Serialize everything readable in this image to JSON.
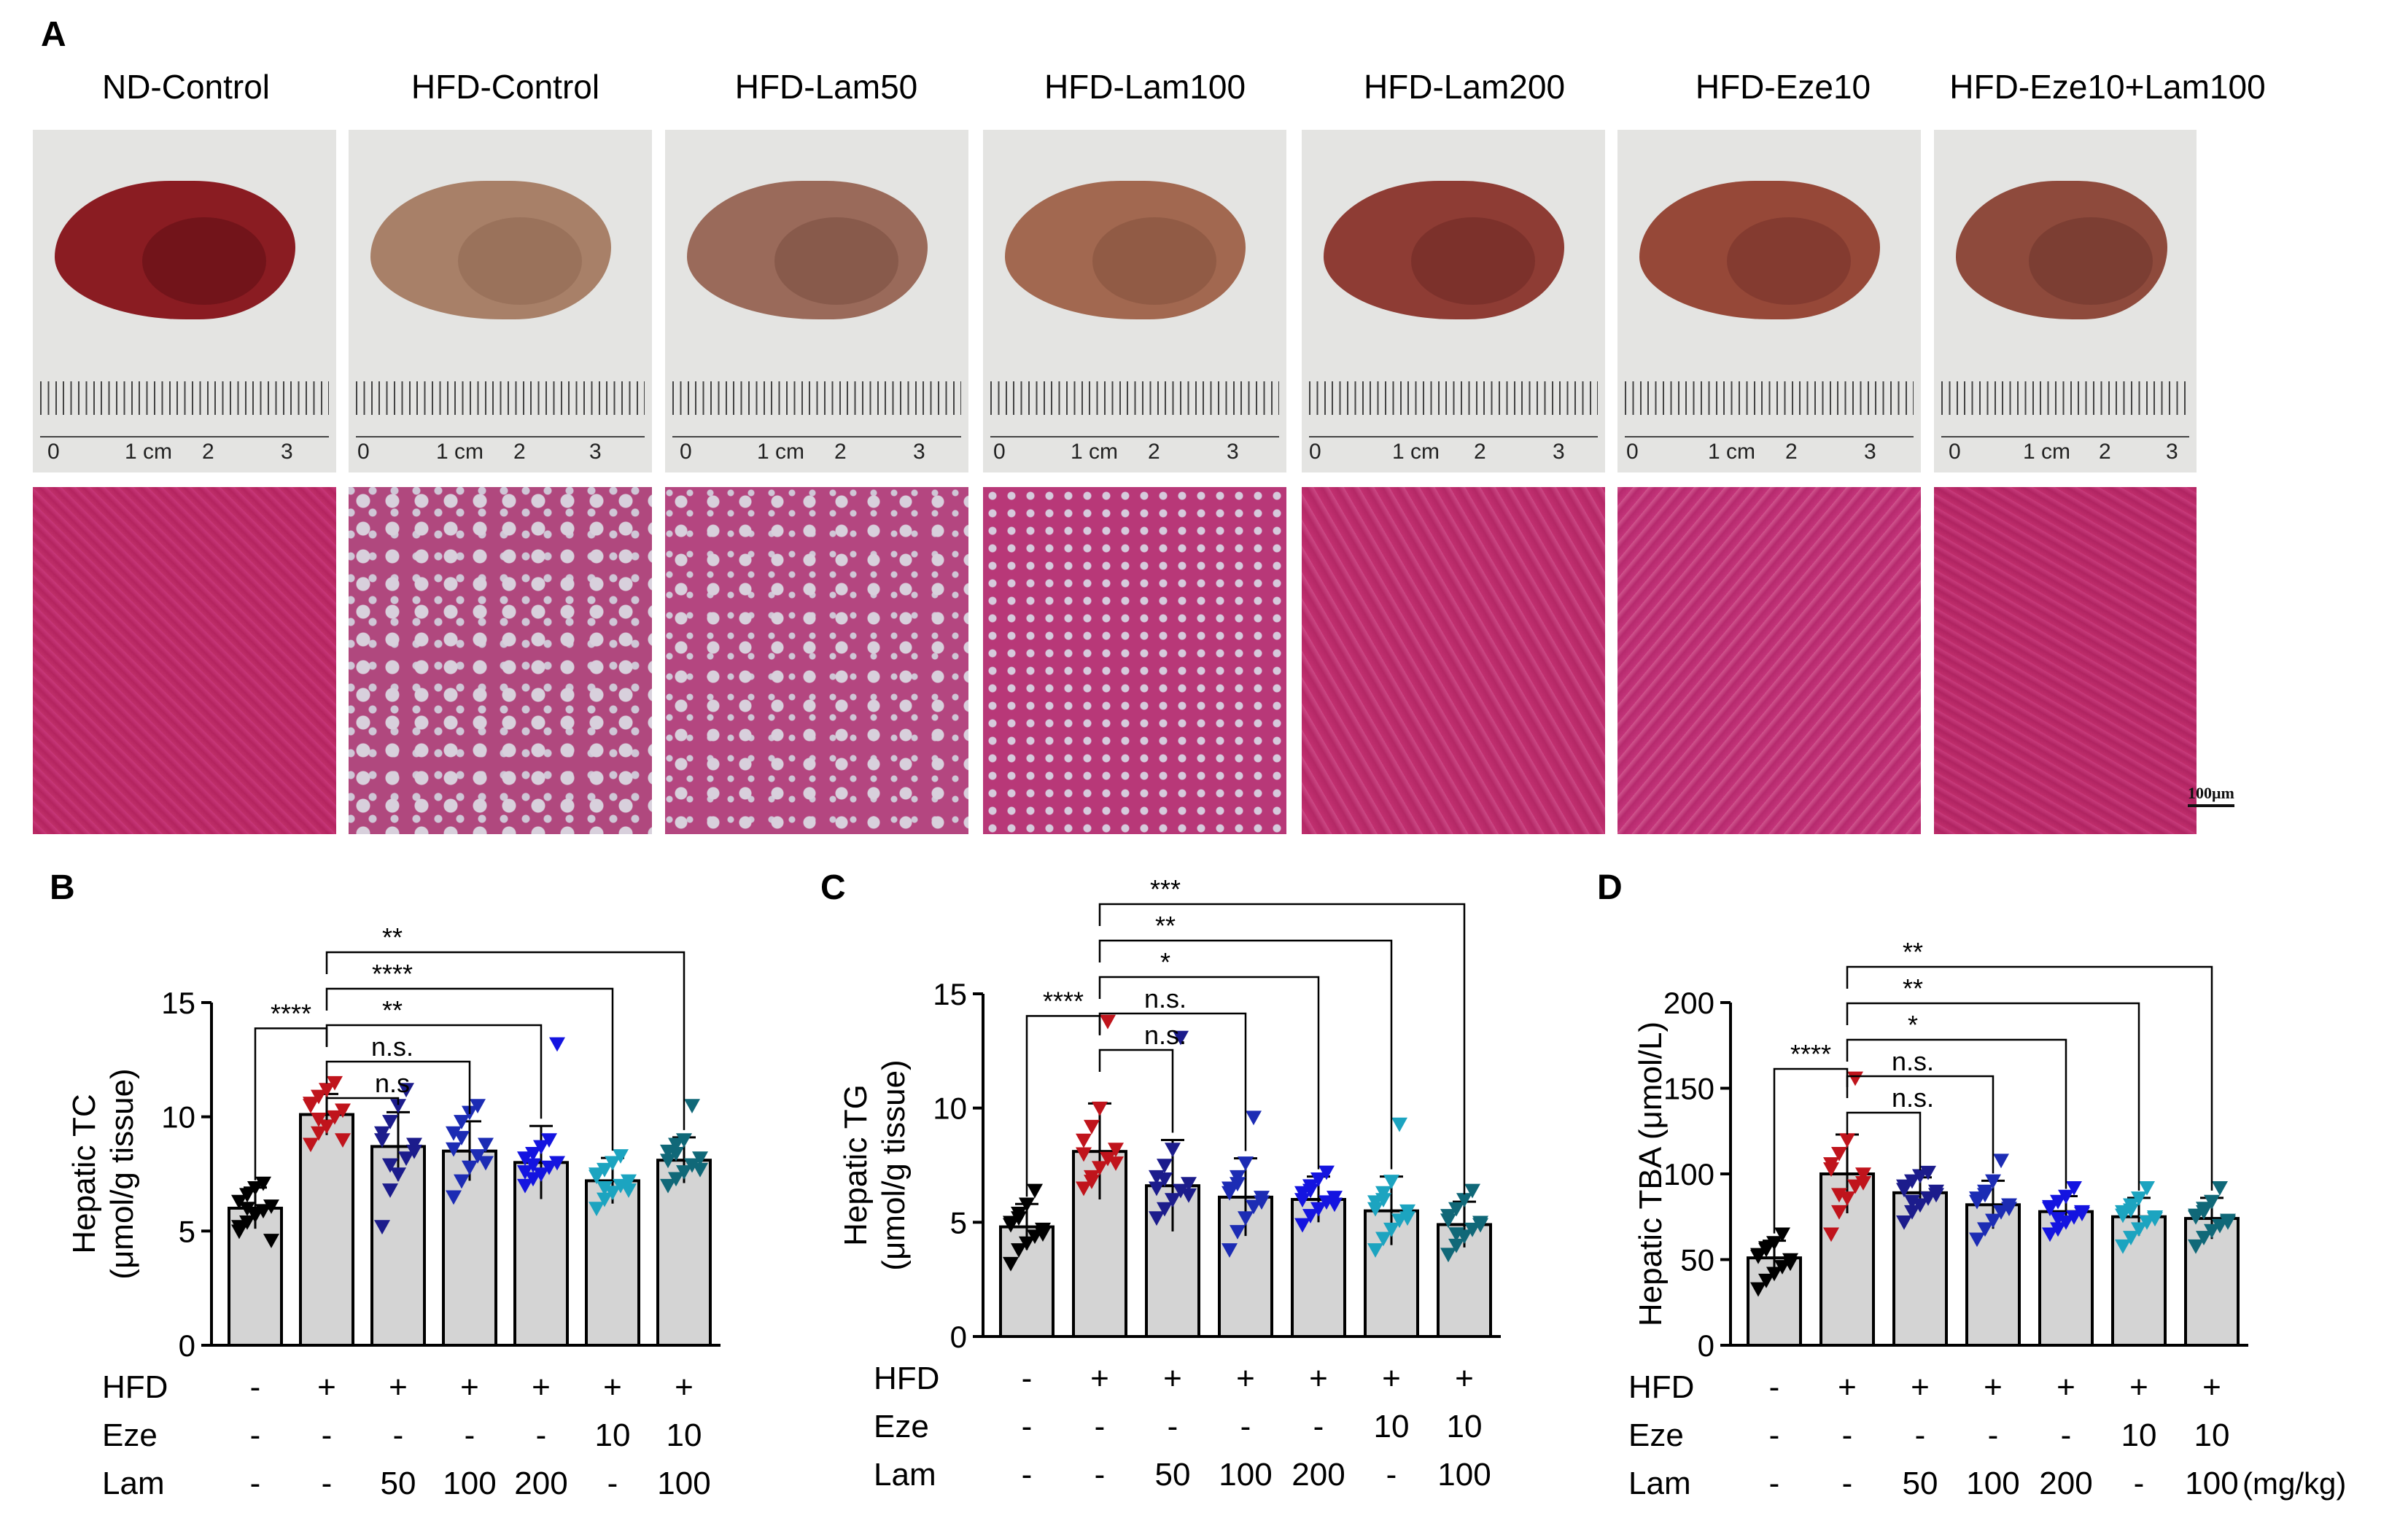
{
  "panel_labels": {
    "a": "A",
    "b": "B",
    "c": "C",
    "d": "D"
  },
  "groups": [
    "ND-Control",
    "HFD-Control",
    "HFD-Lam50",
    "HFD-Lam100",
    "HFD-Lam200",
    "HFD-Eze10",
    "HFD-Eze10+Lam100"
  ],
  "ruler_labels": {
    "zero": "0",
    "one_cm": "1 cm",
    "two": "2",
    "three": "3"
  },
  "scale_bar_label": "100μm",
  "colors": {
    "groups": [
      "#000000",
      "#c0141c",
      "#1c1c8c",
      "#1c2cb4",
      "#1414e0",
      "#1ca4c0",
      "#106878"
    ],
    "bar_fill": "#d4d4d4",
    "liver_normal": "#8a1c22",
    "liver_fatty": "#a88068"
  },
  "conditions": {
    "row_labels": [
      "HFD",
      "Eze",
      "Lam"
    ],
    "HFD": [
      "-",
      "+",
      "+",
      "+",
      "+",
      "+",
      "+"
    ],
    "Eze": [
      "-",
      "-",
      "-",
      "-",
      "-",
      "10",
      "10"
    ],
    "Lam": [
      "-",
      "-",
      "50",
      "100",
      "200",
      "-",
      "100"
    ],
    "unit": "(mg/kg)"
  },
  "chart_data": [
    {
      "id": "B",
      "type": "bar",
      "title": "",
      "ylabel_line1": "Hepatic TC",
      "ylabel_line2": "(μmol/g tissue)",
      "ylim": [
        0,
        15
      ],
      "yticks": [
        0,
        5,
        10,
        15
      ],
      "categories": [
        "ND-Control",
        "HFD-Control",
        "HFD-Lam50",
        "HFD-Lam100",
        "HFD-Lam200",
        "HFD-Eze10",
        "HFD-Eze10+Lam100"
      ],
      "means": [
        6.0,
        10.1,
        8.7,
        8.5,
        8.0,
        7.2,
        8.1
      ],
      "sd": [
        0.9,
        0.9,
        1.5,
        1.3,
        1.6,
        1.0,
        1.0
      ],
      "points": [
        [
          5.0,
          5.4,
          5.7,
          5.9,
          6.1,
          6.3,
          6.6,
          6.9,
          7.1,
          4.6,
          5.2,
          6.0
        ],
        [
          8.8,
          9.3,
          9.6,
          10.0,
          10.3,
          10.6,
          10.9,
          11.2,
          11.5,
          9.0,
          10.5,
          9.9
        ],
        [
          5.2,
          6.8,
          7.5,
          8.2,
          8.8,
          9.3,
          9.8,
          10.5,
          11.2,
          8.5,
          9.0,
          7.9
        ],
        [
          6.5,
          7.2,
          7.8,
          8.3,
          8.8,
          9.3,
          9.8,
          10.2,
          10.5,
          8.0,
          8.6,
          9.1
        ],
        [
          7.0,
          7.3,
          7.5,
          7.8,
          8.0,
          8.2,
          8.4,
          8.7,
          9.0,
          13.2,
          7.6,
          7.9
        ],
        [
          6.0,
          6.4,
          6.7,
          7.0,
          7.2,
          7.4,
          7.7,
          8.0,
          8.3,
          6.8,
          7.5,
          6.9
        ],
        [
          7.0,
          7.3,
          7.6,
          7.9,
          8.2,
          8.5,
          8.8,
          9.0,
          10.5,
          7.7,
          8.1,
          8.4
        ]
      ],
      "comparisons": [
        {
          "a": 0,
          "b": 1,
          "label": "****"
        },
        {
          "a": 1,
          "b": 2,
          "label": "n.s"
        },
        {
          "a": 1,
          "b": 3,
          "label": "n.s."
        },
        {
          "a": 1,
          "b": 4,
          "label": "**"
        },
        {
          "a": 1,
          "b": 5,
          "label": "****"
        },
        {
          "a": 1,
          "b": 6,
          "label": "**"
        }
      ]
    },
    {
      "id": "C",
      "type": "bar",
      "title": "",
      "ylabel_line1": "Hepatic TG",
      "ylabel_line2": "(μmol/g tissue)",
      "ylim": [
        0,
        15
      ],
      "yticks": [
        0,
        5,
        10,
        15
      ],
      "categories": [
        "ND-Control",
        "HFD-Control",
        "HFD-Lam50",
        "HFD-Lam100",
        "HFD-Lam200",
        "HFD-Eze10",
        "HFD-Eze10+Lam100"
      ],
      "means": [
        4.8,
        8.1,
        6.6,
        6.1,
        6.0,
        5.5,
        4.9
      ],
      "sd": [
        1.0,
        2.1,
        2.0,
        1.7,
        1.0,
        1.5,
        1.0
      ],
      "points": [
        [
          3.2,
          3.8,
          4.1,
          4.4,
          4.7,
          5.0,
          5.4,
          5.8,
          6.4,
          4.5,
          4.9,
          5.2
        ],
        [
          6.5,
          7.0,
          7.4,
          7.8,
          8.2,
          8.6,
          9.2,
          10.0,
          13.8,
          7.6,
          8.0,
          6.8
        ],
        [
          5.2,
          5.6,
          6.0,
          6.4,
          6.7,
          7.0,
          7.5,
          8.2,
          13.1,
          6.2,
          6.5,
          6.9
        ],
        [
          3.8,
          4.6,
          5.2,
          5.7,
          6.1,
          6.5,
          7.0,
          7.6,
          9.6,
          5.9,
          6.3,
          6.7
        ],
        [
          4.9,
          5.3,
          5.6,
          5.9,
          6.1,
          6.3,
          6.6,
          6.9,
          7.2,
          5.8,
          6.0,
          6.4
        ],
        [
          3.8,
          4.3,
          4.7,
          5.1,
          5.5,
          5.9,
          6.3,
          6.8,
          9.3,
          5.2,
          5.6,
          6.0
        ],
        [
          3.6,
          4.0,
          4.4,
          4.7,
          5.0,
          5.3,
          5.6,
          6.0,
          6.4,
          4.9,
          5.1,
          4.5
        ]
      ],
      "comparisons": [
        {
          "a": 0,
          "b": 1,
          "label": "****"
        },
        {
          "a": 1,
          "b": 2,
          "label": "n.s."
        },
        {
          "a": 1,
          "b": 3,
          "label": "n.s."
        },
        {
          "a": 1,
          "b": 4,
          "label": "*"
        },
        {
          "a": 1,
          "b": 5,
          "label": "**"
        },
        {
          "a": 1,
          "b": 6,
          "label": "***"
        }
      ]
    },
    {
      "id": "D",
      "type": "bar",
      "title": "",
      "ylabel_line1": "Hepatic TBA (μmol/L)",
      "ylabel_line2": "",
      "ylim": [
        0,
        200
      ],
      "yticks": [
        0,
        50,
        100,
        150,
        200
      ],
      "categories": [
        "ND-Control",
        "HFD-Control",
        "HFD-Lam50",
        "HFD-Lam100",
        "HFD-Lam200",
        "HFD-Eze10",
        "HFD-Eze10+Lam100"
      ],
      "means": [
        51,
        100,
        89,
        82,
        78,
        75,
        74
      ],
      "sd": [
        10,
        23,
        9,
        14,
        9,
        11,
        12
      ],
      "points": [
        [
          33,
          38,
          42,
          46,
          50,
          53,
          56,
          60,
          65,
          48,
          52,
          57
        ],
        [
          65,
          78,
          86,
          93,
          100,
          106,
          112,
          120,
          156,
          95,
          103,
          88
        ],
        [
          72,
          78,
          82,
          86,
          90,
          93,
          96,
          99,
          101,
          88,
          91,
          84
        ],
        [
          62,
          68,
          73,
          78,
          82,
          86,
          90,
          96,
          108,
          80,
          84,
          88
        ],
        [
          65,
          68,
          72,
          75,
          78,
          81,
          84,
          87,
          92,
          77,
          80,
          74
        ],
        [
          58,
          63,
          68,
          72,
          75,
          78,
          82,
          86,
          92,
          74,
          76,
          79
        ],
        [
          58,
          63,
          67,
          70,
          73,
          76,
          80,
          84,
          92,
          72,
          75,
          78
        ]
      ],
      "comparisons": [
        {
          "a": 0,
          "b": 1,
          "label": "****"
        },
        {
          "a": 1,
          "b": 2,
          "label": "n.s."
        },
        {
          "a": 1,
          "b": 3,
          "label": "n.s."
        },
        {
          "a": 1,
          "b": 4,
          "label": "*"
        },
        {
          "a": 1,
          "b": 5,
          "label": "**"
        },
        {
          "a": 1,
          "b": 6,
          "label": "**"
        }
      ]
    }
  ]
}
